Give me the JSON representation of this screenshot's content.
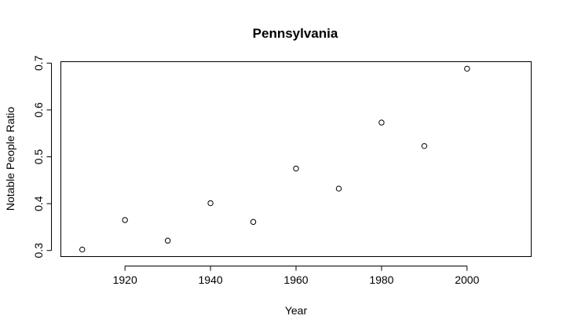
{
  "chart_data": {
    "type": "scatter",
    "title": "Pennsylvania",
    "xlabel": "Year",
    "ylabel": "Notable People Ratio",
    "xlim": [
      1905,
      2015
    ],
    "ylim": [
      0.287,
      0.703
    ],
    "x_ticks": [
      1920,
      1940,
      1960,
      1980,
      2000
    ],
    "y_ticks": [
      0.3,
      0.4,
      0.5,
      0.6,
      0.7
    ],
    "marker": "open-circle",
    "grid": false,
    "legend": "none",
    "point_color": "#000000",
    "x": [
      1910,
      1920,
      1930,
      1940,
      1950,
      1960,
      1970,
      1980,
      1990,
      2000
    ],
    "y": [
      0.302,
      0.365,
      0.321,
      0.401,
      0.361,
      0.475,
      0.432,
      0.573,
      0.523,
      0.688
    ]
  }
}
